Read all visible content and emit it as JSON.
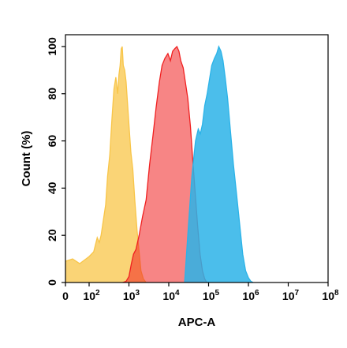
{
  "chart_data": {
    "type": "area",
    "xlabel": "APC-A",
    "ylabel": "Count (%)",
    "x_scale": "biexponential",
    "xlim": [
      0,
      100000000
    ],
    "ylim": [
      0,
      105
    ],
    "y_ticks": [
      {
        "value": 0,
        "label": "0"
      },
      {
        "value": 20,
        "label": "20"
      },
      {
        "value": 40,
        "label": "40"
      },
      {
        "value": 60,
        "label": "60"
      },
      {
        "value": 80,
        "label": "80"
      },
      {
        "value": 100,
        "label": "100"
      }
    ],
    "x_ticks": [
      {
        "value": 0,
        "base": "0",
        "exp": ""
      },
      {
        "value": 100,
        "base": "10",
        "exp": "2"
      },
      {
        "value": 1000,
        "base": "10",
        "exp": "3"
      },
      {
        "value": 10000,
        "base": "10",
        "exp": "4"
      },
      {
        "value": 100000,
        "base": "10",
        "exp": "5"
      },
      {
        "value": 1000000,
        "base": "10",
        "exp": "6"
      },
      {
        "value": 10000000,
        "base": "10",
        "exp": "7"
      },
      {
        "value": 100000000,
        "base": "10",
        "exp": "8"
      }
    ],
    "series": [
      {
        "color": "#f8c548",
        "fill_opacity": 0.75,
        "points": [
          [
            0,
            9
          ],
          [
            30,
            10
          ],
          [
            60,
            8
          ],
          [
            100,
            11
          ],
          [
            130,
            13
          ],
          [
            160,
            19
          ],
          [
            180,
            17
          ],
          [
            200,
            20
          ],
          [
            230,
            27
          ],
          [
            260,
            33
          ],
          [
            290,
            45
          ],
          [
            330,
            54
          ],
          [
            370,
            68
          ],
          [
            420,
            82
          ],
          [
            470,
            87
          ],
          [
            520,
            80
          ],
          [
            560,
            88
          ],
          [
            600,
            92
          ],
          [
            640,
            99
          ],
          [
            680,
            100
          ],
          [
            720,
            92
          ],
          [
            780,
            90
          ],
          [
            850,
            85
          ],
          [
            930,
            75
          ],
          [
            1020,
            65
          ],
          [
            1120,
            55
          ],
          [
            1250,
            48
          ],
          [
            1400,
            35
          ],
          [
            1600,
            22
          ],
          [
            1800,
            13
          ],
          [
            2000,
            5
          ],
          [
            2300,
            1.5
          ],
          [
            2700,
            0
          ]
        ]
      },
      {
        "color": "#f02020",
        "fill_opacity": 0.55,
        "points": [
          [
            700,
            0
          ],
          [
            850,
            0.5
          ],
          [
            1000,
            2.5
          ],
          [
            1150,
            8
          ],
          [
            1300,
            12
          ],
          [
            1500,
            14
          ],
          [
            1800,
            20
          ],
          [
            2200,
            28
          ],
          [
            2700,
            35
          ],
          [
            3300,
            50
          ],
          [
            4000,
            62
          ],
          [
            4800,
            74
          ],
          [
            5800,
            85
          ],
          [
            6800,
            92
          ],
          [
            8000,
            95
          ],
          [
            9500,
            97
          ],
          [
            11000,
            94
          ],
          [
            12500,
            98
          ],
          [
            14000,
            99
          ],
          [
            16000,
            100
          ],
          [
            18000,
            98
          ],
          [
            20000,
            94
          ],
          [
            23000,
            91
          ],
          [
            26000,
            85
          ],
          [
            30000,
            78
          ],
          [
            35000,
            66
          ],
          [
            40000,
            52
          ],
          [
            46000,
            38
          ],
          [
            53000,
            24
          ],
          [
            61000,
            12
          ],
          [
            70000,
            5
          ],
          [
            80000,
            1.5
          ],
          [
            90000,
            0
          ]
        ]
      },
      {
        "color": "#2bb3e8",
        "fill_opacity": 0.85,
        "points": [
          [
            25000,
            0
          ],
          [
            30000,
            20
          ],
          [
            38000,
            45
          ],
          [
            47000,
            60
          ],
          [
            55000,
            65
          ],
          [
            62000,
            63
          ],
          [
            70000,
            67
          ],
          [
            80000,
            75
          ],
          [
            92000,
            80
          ],
          [
            105000,
            86
          ],
          [
            120000,
            92
          ],
          [
            140000,
            95
          ],
          [
            160000,
            97
          ],
          [
            180000,
            100
          ],
          [
            205000,
            98
          ],
          [
            230000,
            94
          ],
          [
            260000,
            87
          ],
          [
            300000,
            78
          ],
          [
            350000,
            65
          ],
          [
            420000,
            50
          ],
          [
            500000,
            38
          ],
          [
            600000,
            25
          ],
          [
            720000,
            12
          ],
          [
            850000,
            5
          ],
          [
            1000000,
            2
          ],
          [
            1150000,
            0.5
          ],
          [
            1300000,
            0
          ]
        ]
      }
    ]
  }
}
